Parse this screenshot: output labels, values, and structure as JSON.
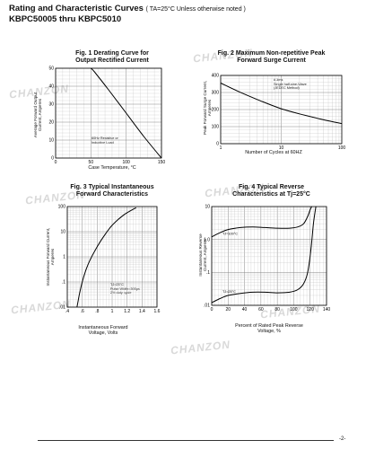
{
  "header": {
    "title_main": "Rating and Characteristic Curves",
    "title_condition": "( TA=25°C Unless otherwise noted )",
    "subtitle": "KBPC50005 thru KBPC5010"
  },
  "watermark_text": "CHANZON",
  "page_number": "-2-",
  "chart_data": [
    {
      "id": "fig1",
      "type": "line",
      "title": "Fig. 1 Derating Curve for\nOutput Rectified Current",
      "ylabel": "Average Forward Output\nCurrent, Amperes",
      "xlabel": "Case Temperature, °C",
      "xscale": "linear",
      "yscale": "linear",
      "xlim": [
        0,
        150
      ],
      "ylim": [
        0,
        50
      ],
      "xticks": [
        0,
        50,
        100,
        150
      ],
      "xtick_labels": [
        "0",
        "50",
        "100",
        "150"
      ],
      "yticks": [
        0,
        10,
        20,
        30,
        40,
        50
      ],
      "ytick_labels": [
        "0",
        "10",
        "20",
        "30",
        "40",
        "50"
      ],
      "grid": true,
      "series": [
        {
          "x": [
            50,
            55,
            75,
            100,
            125,
            150
          ],
          "y": [
            50,
            48,
            38,
            25,
            12,
            0
          ]
        }
      ],
      "annotation": "60Hz Resistive or\nInductive Load"
    },
    {
      "id": "fig2",
      "type": "line",
      "title": "Fig. 2 Maximum Non-repetitive Peak\nForward Surge Current",
      "ylabel": "Peak Forward Surge Current,\nAmperes",
      "xlabel": "Number of Cycles at 60HZ",
      "xscale": "log",
      "yscale": "linear",
      "xlim": [
        1,
        100
      ],
      "ylim": [
        0,
        400
      ],
      "xticks": [
        1,
        10,
        100
      ],
      "xtick_labels": [
        "1",
        "10",
        "100"
      ],
      "yticks": [
        0,
        100,
        200,
        300,
        400
      ],
      "ytick_labels": [
        "0",
        "100",
        "200",
        "300",
        "400"
      ],
      "grid": true,
      "series": [
        {
          "x": [
            1,
            2,
            5,
            10,
            20,
            50,
            100
          ],
          "y": [
            355,
            305,
            245,
            205,
            175,
            140,
            118
          ]
        }
      ],
      "annotation": "8.3ms\nSingle half-sine-Wave\n(JEDEC Method)"
    },
    {
      "id": "fig3",
      "type": "line",
      "title": "Fig. 3 Typical Instantaneous\nForward Characteristics",
      "ylabel": "Instantaneous Forward Current,\nAmperes",
      "xlabel": "Instantaneous Forward\nVoltage, Volts",
      "xscale": "linear",
      "yscale": "log",
      "xlim": [
        0.4,
        1.6
      ],
      "ylim": [
        0.01,
        100
      ],
      "xticks": [
        0.4,
        0.6,
        0.8,
        1.0,
        1.2,
        1.4,
        1.6
      ],
      "xtick_labels": [
        ".4",
        ".6",
        ".8",
        "1",
        "1.2",
        "1.4",
        "1.6"
      ],
      "yticks": [
        0.01,
        0.1,
        1,
        10,
        100
      ],
      "ytick_labels": [
        ".01",
        ".1",
        "1",
        "10",
        "100"
      ],
      "grid": true,
      "series": [
        {
          "x": [
            0.53,
            0.56,
            0.6,
            0.65,
            0.7,
            0.78,
            0.88,
            1.0,
            1.15,
            1.32
          ],
          "y": [
            0.01,
            0.03,
            0.1,
            0.3,
            0.7,
            2,
            6,
            18,
            45,
            90
          ]
        }
      ],
      "annotation": "TJ=25°C\nPulse Width=300μs\n2% duty cycle"
    },
    {
      "id": "fig4",
      "type": "line",
      "title": "Fig. 4 Typical Reverse\nCharacteristics at Tj=25°C",
      "ylabel": "Instantaneous Reverse\nCurrent, Amperes",
      "xlabel": "Percent of Rated Peak Reverse\nVoltage, %",
      "xscale": "linear",
      "yscale": "log",
      "xlim": [
        0,
        140
      ],
      "ylim": [
        0.01,
        10
      ],
      "xticks": [
        0,
        20,
        40,
        60,
        80,
        100,
        120,
        140
      ],
      "xtick_labels": [
        "0",
        "20",
        "40",
        "60",
        "80",
        "100",
        "120",
        "140"
      ],
      "yticks": [
        0.01,
        0.1,
        1,
        10
      ],
      "ytick_labels": [
        ".01",
        ".1",
        "1.0",
        "10"
      ],
      "grid": true,
      "series": [
        {
          "name": "TJ=100°C",
          "x": [
            0,
            10,
            20,
            35,
            50,
            65,
            80,
            95,
            105,
            112,
            117,
            120,
            122
          ],
          "y": [
            1.2,
            1.6,
            2.0,
            2.3,
            2.4,
            2.3,
            2.2,
            2.2,
            2.4,
            3.0,
            5,
            8,
            10
          ]
        },
        {
          "name": "TJ=25°C",
          "x": [
            0,
            10,
            20,
            35,
            50,
            65,
            80,
            95,
            105,
            112,
            117,
            121,
            124,
            127
          ],
          "y": [
            0.012,
            0.016,
            0.02,
            0.023,
            0.025,
            0.025,
            0.024,
            0.025,
            0.03,
            0.045,
            0.1,
            0.5,
            3,
            10
          ]
        }
      ]
    }
  ]
}
